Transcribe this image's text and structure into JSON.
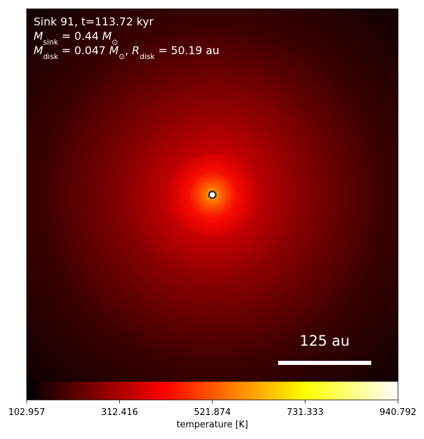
{
  "chart_data": {
    "type": "heatmap",
    "annotation_lines": [
      [
        {
          "text": "Sink 91, t=113.72 kyr",
          "style": "normal"
        }
      ],
      [
        {
          "text": "M",
          "style": "italic"
        },
        {
          "text": "sink",
          "style": "sub"
        },
        {
          "text": " = 0.44 ",
          "style": "normal"
        },
        {
          "text": "M",
          "style": "italic"
        },
        {
          "text": "⊙",
          "style": "sub"
        }
      ],
      [
        {
          "text": "M",
          "style": "italic"
        },
        {
          "text": "disk",
          "style": "sub"
        },
        {
          "text": " = 0.047 ",
          "style": "normal"
        },
        {
          "text": "M",
          "style": "italic"
        },
        {
          "text": "⊙",
          "style": "sub"
        },
        {
          "text": ", ",
          "style": "normal"
        },
        {
          "text": "R",
          "style": "italic"
        },
        {
          "text": "disk",
          "style": "sub"
        },
        {
          "text": " = 50.19 au",
          "style": "normal"
        }
      ]
    ],
    "scalebar_label": "125 au",
    "colorbar": {
      "label": "temperature [K]",
      "colormap": "hot",
      "xlim": [
        102.957,
        940.792
      ],
      "xticks": [
        102.957,
        312.416,
        521.874,
        731.333,
        940.792
      ]
    }
  }
}
